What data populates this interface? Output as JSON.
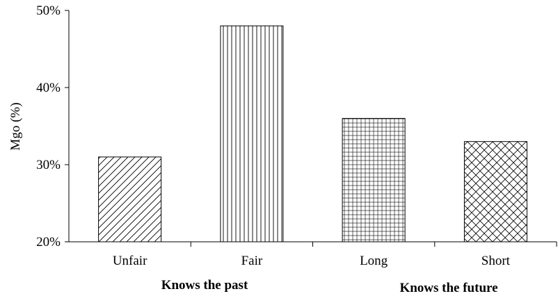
{
  "chart_data": {
    "type": "bar",
    "title": "",
    "xlabel": "",
    "ylabel": "Mgo (%)",
    "categories": [
      "Unfair",
      "Fair",
      "Long",
      "Short"
    ],
    "values": [
      31,
      48,
      36,
      33
    ],
    "value_unit": "%",
    "ylim": [
      20,
      50
    ],
    "yticks": [
      "20%",
      "30%",
      "40%",
      "50%"
    ],
    "groups": [
      {
        "label": "Knows the past",
        "categories": [
          "Unfair",
          "Fair"
        ]
      },
      {
        "label": "Knows the future",
        "categories": [
          "Long",
          "Short"
        ]
      }
    ],
    "patterns": [
      "diagonal-lines",
      "vertical-lines",
      "grid",
      "crosshatch"
    ],
    "grid": false,
    "legend": "none",
    "colors": {
      "bar_fill": "#ffffff",
      "bar_edge": "#000000",
      "pattern": "#000000",
      "axis": "#000000"
    }
  }
}
